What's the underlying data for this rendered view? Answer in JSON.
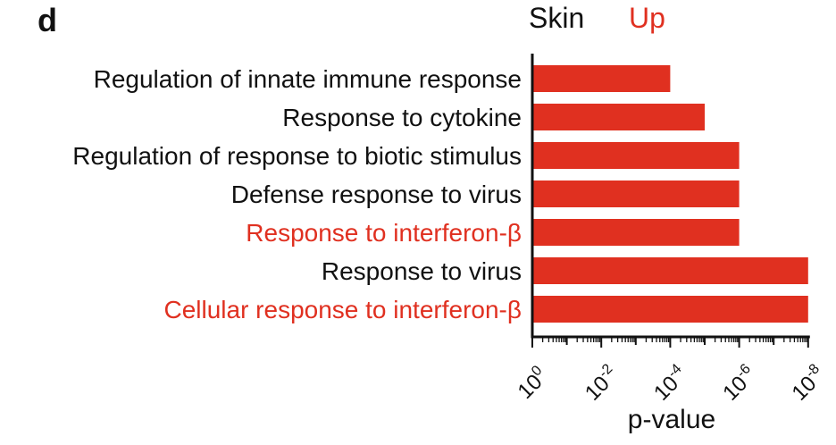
{
  "panel_letter": "d",
  "title_left": "Skin",
  "title_right": "Up",
  "colors": {
    "bar": "#e03020",
    "highlight_text": "#e03020",
    "text": "#111111",
    "axis": "#111111"
  },
  "chart_data": {
    "type": "bar",
    "orientation": "horizontal",
    "categories": [
      "Regulation of innate immune response",
      "Response to cytokine",
      "Regulation of response to biotic stimulus",
      "Defense response to virus",
      "Response to interferon-β",
      "Response to virus",
      "Cellular response to interferon-β"
    ],
    "highlighted": [
      false,
      false,
      false,
      false,
      true,
      false,
      true
    ],
    "values": [
      0.0001,
      1e-05,
      1e-06,
      1e-06,
      1e-06,
      1e-08,
      1e-08
    ],
    "xlabel": "p-value",
    "xscale": "log (reversed)",
    "xlim": [
      1,
      1e-08
    ],
    "xtick_labels": [
      {
        "base": "10",
        "exp": "0"
      },
      {
        "base": "10",
        "exp": "-2"
      },
      {
        "base": "10",
        "exp": "-4"
      },
      {
        "base": "10",
        "exp": "-6"
      },
      {
        "base": "10",
        "exp": "-8"
      }
    ]
  }
}
